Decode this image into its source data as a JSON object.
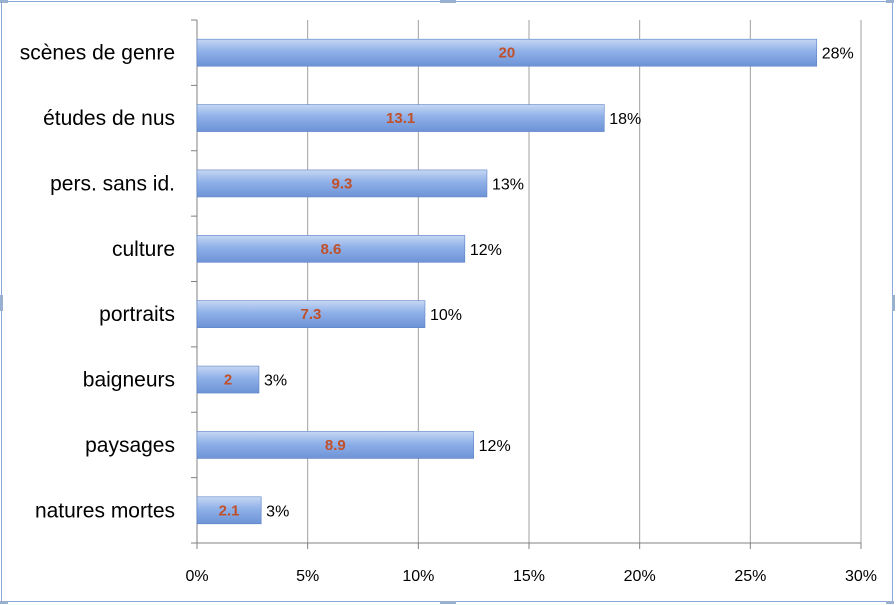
{
  "chart_data": {
    "type": "bar",
    "orientation": "horizontal",
    "categories": [
      "scènes de genre",
      "études de nus",
      "pers. sans id.",
      "culture",
      "portraits",
      "baigneurs",
      "paysages",
      "natures mortes"
    ],
    "values": [
      28,
      18.4,
      13.1,
      12.1,
      10.3,
      2.8,
      12.5,
      2.9
    ],
    "inner_labels": [
      "20",
      "13.1",
      "9.3",
      "8.6",
      "7.3",
      "2",
      "8.9",
      "2.1"
    ],
    "end_labels": [
      "28%",
      "18%",
      "13%",
      "12%",
      "10%",
      "3%",
      "12%",
      "3%"
    ],
    "xlim": [
      0,
      30
    ],
    "xticks": [
      "0%",
      "5%",
      "10%",
      "15%",
      "20%",
      "25%",
      "30%"
    ],
    "grid": "vertical",
    "title": "",
    "xlabel": "",
    "ylabel": "",
    "colors": {
      "bar_top": "#c6d7f3",
      "bar_mid": "#8fb0e8",
      "bar_bottom": "#6d93d6",
      "bar_edge": "#5b82c8",
      "inner_label": "#c0502a",
      "grid": "#a0a0a0",
      "axis": "#808080"
    }
  }
}
